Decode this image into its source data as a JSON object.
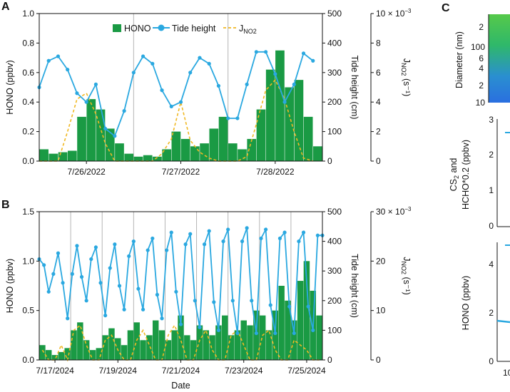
{
  "panels": {
    "a": "A",
    "b": "B",
    "c": "C"
  },
  "units": {
    "exp_a": "10 × 10",
    "exp_b": "30 × 10",
    "exp_power": "−3"
  },
  "chart_data": [
    {
      "type": "bar",
      "panel": "A",
      "title": "",
      "xlabel": "",
      "ylabel": "HONO (ppbv)",
      "y2label": "Tide height (cm)",
      "y3label": "J_NO2 (s⁻¹)",
      "ylim": [
        0,
        1.0
      ],
      "y2lim": [
        0,
        500
      ],
      "y3lim": [
        0,
        10
      ],
      "xlim": [
        0,
        3.0
      ],
      "x_ticks": [
        0.5,
        1.5,
        2.5
      ],
      "x_tick_labels": [
        "7/26/2022",
        "7/27/2022",
        "7/28/2022"
      ],
      "y_tick_labels": [
        "0.0",
        "0.2",
        "0.4",
        "0.6",
        "0.8",
        "1.0"
      ],
      "y2_tick_labels": [
        "0",
        "100",
        "200",
        "300",
        "400",
        "500"
      ],
      "y3_tick_labels": [
        "0",
        "2",
        "4",
        "6",
        "8",
        "10 × 10"
      ],
      "legend": {
        "position": "top-center",
        "entries": [
          "HONO",
          "Tide height",
          "J_NO2"
        ]
      },
      "series": [
        {
          "name": "HONO",
          "kind": "bar",
          "color": "#1a9a44",
          "x": [
            0.05,
            0.15,
            0.25,
            0.35,
            0.45,
            0.55,
            0.65,
            0.75,
            0.85,
            0.95,
            1.05,
            1.15,
            1.25,
            1.35,
            1.45,
            1.55,
            1.65,
            1.75,
            1.85,
            1.95,
            2.05,
            2.15,
            2.25,
            2.35,
            2.45,
            2.55,
            2.65,
            2.75,
            2.85,
            2.95
          ],
          "values": [
            0.08,
            0.05,
            0.06,
            0.07,
            0.3,
            0.42,
            0.35,
            0.22,
            0.12,
            0.05,
            0.03,
            0.04,
            0.03,
            0.08,
            0.2,
            0.15,
            0.1,
            0.12,
            0.22,
            0.3,
            0.12,
            0.08,
            0.15,
            0.35,
            0.62,
            0.75,
            0.5,
            0.55,
            0.3,
            0.1
          ]
        },
        {
          "name": "Tide height",
          "kind": "line",
          "color": "#2aa8e0",
          "x": [
            0.0,
            0.1,
            0.2,
            0.3,
            0.4,
            0.5,
            0.6,
            0.7,
            0.8,
            0.9,
            1.0,
            1.1,
            1.2,
            1.3,
            1.4,
            1.5,
            1.6,
            1.7,
            1.8,
            1.9,
            2.0,
            2.1,
            2.2,
            2.3,
            2.4,
            2.5,
            2.6,
            2.7,
            2.8,
            2.9
          ],
          "values": [
            250,
            340,
            355,
            310,
            230,
            200,
            260,
            110,
            85,
            170,
            300,
            355,
            330,
            240,
            185,
            200,
            300,
            350,
            330,
            255,
            145,
            145,
            260,
            370,
            370,
            295,
            200,
            260,
            365,
            340
          ]
        },
        {
          "name": "J_NO2",
          "kind": "dashed",
          "color": "#f0b823",
          "x": [
            0.0,
            0.1,
            0.2,
            0.3,
            0.4,
            0.5,
            0.6,
            0.7,
            0.8,
            0.9,
            1.0,
            1.1,
            1.2,
            1.3,
            1.4,
            1.5,
            1.6,
            1.7,
            1.8,
            1.9,
            2.0,
            2.1,
            2.2,
            2.3,
            2.4,
            2.5,
            2.6,
            2.7,
            2.8,
            2.9
          ],
          "values": [
            0,
            0,
            0,
            2.0,
            4.2,
            4.6,
            3.2,
            1.2,
            0,
            0,
            0,
            0,
            0,
            0.5,
            1.5,
            4.0,
            1.4,
            0.6,
            0.2,
            0,
            0,
            0,
            0.3,
            2.5,
            4.8,
            5.5,
            4.2,
            2.0,
            0.2,
            0
          ]
        }
      ]
    },
    {
      "type": "bar",
      "panel": "B",
      "title": "",
      "xlabel": "Date",
      "ylabel": "HONO (ppbv)",
      "y2label": "Tide height (cm)",
      "y3label": "J_NO2 (s⁻¹)",
      "ylim": [
        0,
        1.5
      ],
      "y2lim": [
        0,
        500
      ],
      "y3lim": [
        0,
        30
      ],
      "xlim": [
        0,
        9.0
      ],
      "x_ticks": [
        0.5,
        2.5,
        4.5,
        6.5,
        8.5
      ],
      "x_tick_labels": [
        "7/17/2024",
        "7/19/2024",
        "7/21/2024",
        "7/23/2024",
        "7/25/2024"
      ],
      "y_tick_labels": [
        "0.0",
        "0.5",
        "1.0",
        "1.5"
      ],
      "y2_tick_labels": [
        "0",
        "100",
        "200",
        "300",
        "400",
        "500"
      ],
      "y3_tick_labels": [
        "0",
        "10",
        "20",
        "30 × 10"
      ],
      "series": [
        {
          "name": "HONO",
          "kind": "bar",
          "color": "#1a9a44",
          "x": [
            0.1,
            0.3,
            0.5,
            0.7,
            0.9,
            1.1,
            1.3,
            1.5,
            1.7,
            1.9,
            2.1,
            2.3,
            2.5,
            2.7,
            2.9,
            3.1,
            3.3,
            3.5,
            3.7,
            3.9,
            4.1,
            4.3,
            4.5,
            4.7,
            4.9,
            5.1,
            5.3,
            5.5,
            5.7,
            5.9,
            6.1,
            6.3,
            6.5,
            6.7,
            6.9,
            7.1,
            7.3,
            7.5,
            7.7,
            7.9,
            8.1,
            8.3,
            8.5,
            8.7,
            8.9
          ],
          "values": [
            0.15,
            0.1,
            0.05,
            0.08,
            0.12,
            0.3,
            0.38,
            0.2,
            0.1,
            0.12,
            0.25,
            0.32,
            0.22,
            0.15,
            0.3,
            0.38,
            0.2,
            0.25,
            0.4,
            0.3,
            0.2,
            0.3,
            0.45,
            0.25,
            0.2,
            0.35,
            0.3,
            0.25,
            0.35,
            0.45,
            0.25,
            0.3,
            0.4,
            0.35,
            0.5,
            0.45,
            0.3,
            0.5,
            0.75,
            0.6,
            0.4,
            0.8,
            1.0,
            0.7,
            0.45
          ]
        },
        {
          "name": "Tide height",
          "kind": "line",
          "color": "#2aa8e0",
          "x": [
            0.0,
            0.15,
            0.3,
            0.45,
            0.6,
            0.75,
            0.9,
            1.05,
            1.2,
            1.35,
            1.5,
            1.65,
            1.8,
            1.95,
            2.1,
            2.25,
            2.4,
            2.55,
            2.7,
            2.85,
            3.0,
            3.15,
            3.3,
            3.45,
            3.6,
            3.75,
            3.9,
            4.05,
            4.2,
            4.35,
            4.5,
            4.65,
            4.8,
            4.95,
            5.1,
            5.25,
            5.4,
            5.55,
            5.7,
            5.85,
            6.0,
            6.15,
            6.3,
            6.45,
            6.6,
            6.75,
            6.9,
            7.05,
            7.2,
            7.35,
            7.5,
            7.65,
            7.8,
            7.95,
            8.1,
            8.25,
            8.4,
            8.55,
            8.7,
            8.85,
            9.0
          ],
          "values": [
            340,
            320,
            230,
            290,
            360,
            260,
            140,
            290,
            385,
            280,
            200,
            340,
            380,
            260,
            150,
            310,
            390,
            250,
            170,
            350,
            400,
            240,
            170,
            370,
            410,
            220,
            140,
            370,
            430,
            230,
            120,
            390,
            425,
            200,
            110,
            390,
            435,
            195,
            100,
            400,
            440,
            200,
            90,
            400,
            445,
            200,
            90,
            410,
            440,
            185,
            90,
            410,
            430,
            180,
            90,
            400,
            430,
            180,
            100,
            420,
            420
          ]
        },
        {
          "name": "J_NO2",
          "kind": "dashed",
          "color": "#f0b823",
          "x": [
            0.1,
            0.3,
            0.5,
            0.7,
            0.9,
            1.1,
            1.3,
            1.5,
            1.7,
            1.9,
            2.1,
            2.3,
            2.5,
            2.7,
            2.9,
            3.1,
            3.3,
            3.5,
            3.7,
            3.9,
            4.1,
            4.3,
            4.5,
            4.7,
            4.9,
            5.1,
            5.3,
            5.5,
            5.7,
            5.9,
            6.1,
            6.3,
            6.5,
            6.7,
            6.9,
            7.1,
            7.3,
            7.5,
            7.7,
            7.9,
            8.1,
            8.3,
            8.5,
            8.7,
            8.9
          ],
          "values": [
            2,
            0,
            0,
            3,
            0,
            6,
            7,
            3,
            0,
            0,
            4,
            5,
            2,
            0,
            0,
            4,
            6,
            3,
            0,
            0,
            5,
            7,
            4,
            0,
            0,
            4,
            6,
            2,
            0,
            0,
            5,
            6,
            3,
            0,
            0,
            5,
            6,
            2,
            0,
            0,
            4,
            3,
            2,
            0,
            0
          ]
        }
      ]
    }
  ]
}
